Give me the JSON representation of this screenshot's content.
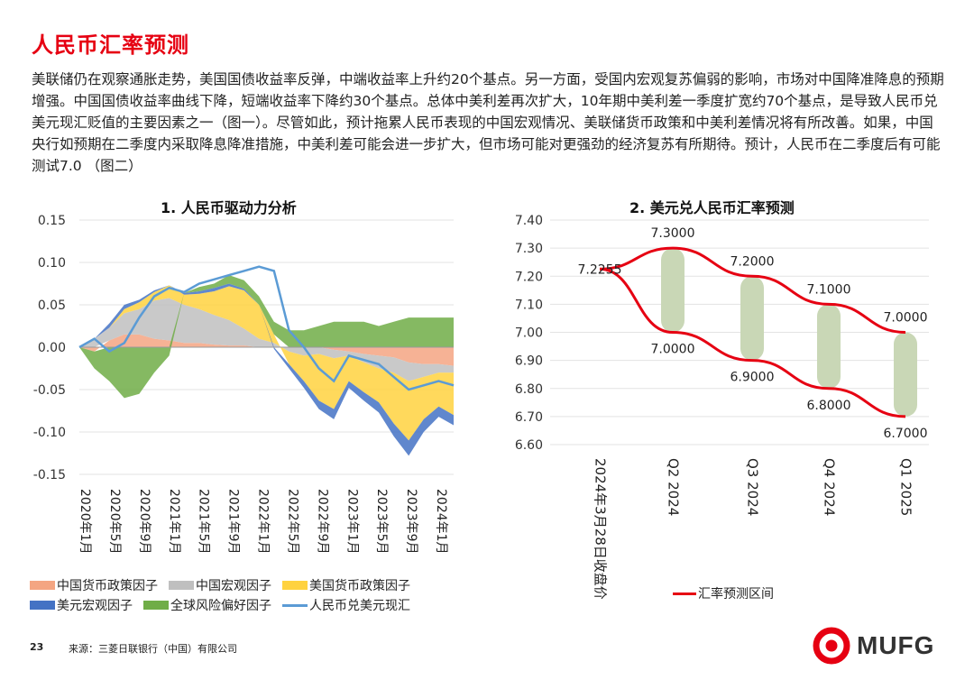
{
  "header": {
    "title": "人民币汇率预测",
    "intro": "美联储仍在观察通胀走势，美国国债收益率反弹，中端收益率上升约20个基点。另一方面，受国内宏观复苏偏弱的影响，市场对中国降准降息的预期增强。中国国债收益率曲线下降，短端收益率下降约30个基点。总体中美利差再次扩大，10年期中美利差一季度扩宽约70个基点，是导致人民币兑美元现汇贬值的主要因素之一（图一）。尽管如此，预计拖累人民币表现的中国宏观情况、美联储货币政策和中美利差情况将有所改善。如果，中国央行如预期在二季度内采取降息降准措施，中美利差可能会进一步扩大，但市场可能对更强劲的经济复苏有所期待。预计，人民币在二季度后有可能测试7.0 （图二）"
  },
  "colors": {
    "accent": "#e60012",
    "cn_monetary": "#f4a582",
    "cn_macro": "#bfbfbf",
    "us_monetary": "#ffd23f",
    "us_macro": "#4472c4",
    "risk": "#70ad47",
    "cny_spot": "#5b9bd5",
    "band": "#c9d7b6"
  },
  "chart_data": [
    {
      "type": "area",
      "title": "1. 人民币驱动力分析",
      "ylim": [
        -0.15,
        0.15
      ],
      "y_ticks": [
        "0.15",
        "0.10",
        "0.05",
        "0.00",
        "-0.05",
        "-0.10",
        "-0.15"
      ],
      "x_ticks": [
        "2020年1月",
        "2020年5月",
        "2020年9月",
        "2021年1月",
        "2021年5月",
        "2021年9月",
        "2022年1月",
        "2022年5月",
        "2022年9月",
        "2023年1月",
        "2023年5月",
        "2023年9月",
        "2024年1月"
      ],
      "x": [
        "2020-01",
        "2020-03",
        "2020-05",
        "2020-07",
        "2020-09",
        "2020-11",
        "2021-01",
        "2021-03",
        "2021-05",
        "2021-07",
        "2021-09",
        "2021-11",
        "2022-01",
        "2022-03",
        "2022-05",
        "2022-07",
        "2022-09",
        "2022-11",
        "2023-01",
        "2023-03",
        "2023-05",
        "2023-07",
        "2023-09",
        "2023-11",
        "2024-01",
        "2024-03"
      ],
      "series": [
        {
          "name": "中国货币政策因子",
          "kind": "area",
          "values": [
            0.0,
            -0.005,
            0.008,
            0.015,
            0.015,
            0.01,
            0.008,
            0.005,
            0.005,
            0.003,
            0.002,
            0.002,
            0.0,
            0.0,
            0.0,
            0.0,
            0.0,
            -0.003,
            -0.005,
            -0.008,
            -0.01,
            -0.012,
            -0.018,
            -0.02,
            -0.02,
            -0.022
          ]
        },
        {
          "name": "中国宏观因子",
          "kind": "area",
          "values": [
            0.0,
            0.01,
            0.015,
            0.025,
            0.03,
            0.045,
            0.05,
            0.045,
            0.04,
            0.035,
            0.03,
            0.02,
            0.01,
            0.005,
            -0.005,
            -0.01,
            -0.008,
            -0.01,
            -0.005,
            -0.01,
            -0.015,
            -0.018,
            -0.022,
            -0.015,
            -0.01,
            -0.008
          ]
        },
        {
          "name": "美国货币政策因子",
          "kind": "area",
          "values": [
            0.0,
            0.0,
            0.0,
            0.005,
            0.008,
            0.01,
            0.015,
            0.012,
            0.018,
            0.028,
            0.04,
            0.045,
            0.04,
            0.01,
            -0.015,
            -0.03,
            -0.055,
            -0.06,
            -0.03,
            -0.035,
            -0.04,
            -0.06,
            -0.07,
            -0.05,
            -0.04,
            -0.05
          ]
        },
        {
          "name": "美元宏观因子",
          "kind": "area",
          "values": [
            0.0,
            0.0,
            0.005,
            0.005,
            0.003,
            0.002,
            0.0,
            0.002,
            0.003,
            0.004,
            0.003,
            0.002,
            0.0,
            -0.002,
            -0.005,
            -0.008,
            -0.01,
            -0.012,
            -0.008,
            -0.01,
            -0.012,
            -0.015,
            -0.018,
            -0.015,
            -0.012,
            -0.012
          ]
        },
        {
          "name": "全球风险偏好因子",
          "kind": "area",
          "values": [
            0.0,
            -0.02,
            -0.04,
            -0.06,
            -0.055,
            -0.03,
            -0.01,
            0.0,
            0.005,
            0.005,
            0.01,
            0.01,
            0.01,
            0.015,
            0.02,
            0.02,
            0.025,
            0.03,
            0.03,
            0.03,
            0.025,
            0.03,
            0.035,
            0.035,
            0.035,
            0.035
          ]
        },
        {
          "name": "人民币兑美元现汇",
          "kind": "line",
          "values": [
            0.0,
            0.01,
            -0.005,
            0.005,
            0.035,
            0.06,
            0.07,
            0.065,
            0.075,
            0.08,
            0.085,
            0.09,
            0.095,
            0.09,
            0.02,
            0.0,
            -0.025,
            -0.04,
            -0.01,
            -0.015,
            -0.02,
            -0.035,
            -0.05,
            -0.045,
            -0.04,
            -0.045
          ]
        }
      ],
      "legend": {
        "placement": "bottom",
        "rows": [
          [
            "中国货币政策因子",
            "中国宏观因子",
            "美国货币政策因子"
          ],
          [
            "美元宏观因子",
            "全球风险偏好因子",
            "人民币兑美元现汇"
          ]
        ]
      },
      "grid": true
    },
    {
      "type": "line",
      "title": "2. 美元兑人民币汇率预测",
      "ylim": [
        6.6,
        7.4
      ],
      "y_ticks": [
        "7.40",
        "7.30",
        "7.20",
        "7.10",
        "7.00",
        "6.90",
        "6.80",
        "6.70",
        "6.60"
      ],
      "categories": [
        "2024年3月28日收盘价",
        "Q2 2024",
        "Q3 2024",
        "Q4 2024",
        "Q1 2025"
      ],
      "series": [
        {
          "name": "汇率预测区间",
          "role": "upper",
          "values": [
            7.2255,
            7.3,
            7.2,
            7.1,
            7.0
          ],
          "labels": [
            "7.2255",
            "7.3000",
            "7.2000",
            "7.1000",
            "7.0000"
          ]
        },
        {
          "name": "",
          "role": "lower",
          "values": [
            7.2255,
            7.0,
            6.9,
            6.8,
            6.7
          ],
          "labels": [
            "",
            "7.0000",
            "6.9000",
            "6.8000",
            "6.7000"
          ]
        }
      ],
      "legend": {
        "placement": "bottom",
        "entries": [
          "汇率预测区间"
        ]
      },
      "grid": true
    }
  ],
  "footer": {
    "page_number": "23",
    "source": "来源：三菱日联银行（中国）有限公司",
    "logo_text": "MUFG"
  }
}
